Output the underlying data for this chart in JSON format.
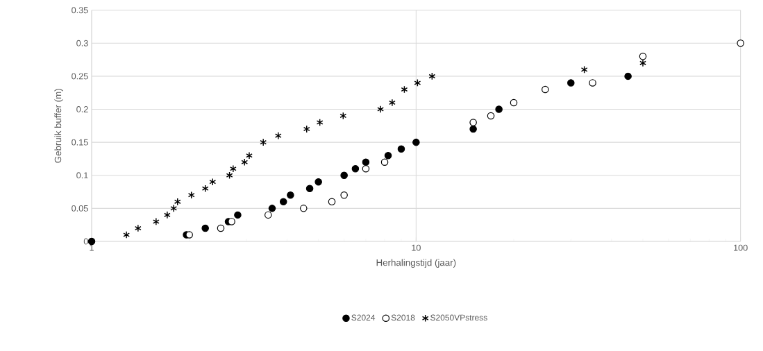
{
  "chart_data": {
    "type": "scatter",
    "xlabel": "Herhalingstijd (jaar)",
    "ylabel": "Gebruik buffer (m)",
    "log": "x",
    "xlim": [
      1,
      100
    ],
    "xticks": [
      1,
      10,
      100
    ],
    "ylim": [
      0,
      0.35
    ],
    "yticks": [
      0,
      0.05,
      0.1,
      0.15,
      0.2,
      0.25,
      0.3,
      0.35
    ],
    "grid": true,
    "legend": "bottom",
    "series": [
      {
        "name": "S2024",
        "color": "#000000",
        "marker": "circle",
        "x": [
          1,
          1.96,
          2.24,
          2.64,
          2.82,
          3.6,
          3.9,
          4.1,
          4.7,
          5,
          6,
          6.5,
          7,
          8.2,
          9,
          10,
          15,
          18,
          30,
          45
        ],
        "values": [
          0,
          0.01,
          0.02,
          0.03,
          0.04,
          0.05,
          0.06,
          0.07,
          0.08,
          0.09,
          0.1,
          0.11,
          0.12,
          0.13,
          0.14,
          0.15,
          0.17,
          0.2,
          0.24,
          0.25
        ]
      },
      {
        "name": "S2018",
        "color": "#ffffff",
        "marker": "circle",
        "x": [
          2,
          2.5,
          2.7,
          3.5,
          4.5,
          5.5,
          6,
          7,
          8,
          15,
          17,
          20,
          25,
          35,
          50,
          100
        ],
        "values": [
          0.01,
          0.02,
          0.03,
          0.04,
          0.05,
          0.06,
          0.07,
          0.11,
          0.12,
          0.18,
          0.19,
          0.21,
          0.23,
          0.24,
          0.28,
          0.3
        ]
      },
      {
        "name": "S2050VPstress",
        "color": "#000000",
        "marker": "cross",
        "x": [
          1.28,
          1.39,
          1.58,
          1.71,
          1.79,
          1.84,
          2.03,
          2.24,
          2.36,
          2.66,
          2.73,
          2.96,
          3.06,
          3.38,
          3.76,
          4.6,
          5.05,
          5.96,
          7.77,
          8.44,
          9.2,
          10.1,
          11.2,
          33,
          50
        ],
        "values": [
          0.01,
          0.02,
          0.03,
          0.04,
          0.05,
          0.06,
          0.07,
          0.08,
          0.09,
          0.1,
          0.11,
          0.12,
          0.13,
          0.15,
          0.16,
          0.17,
          0.18,
          0.19,
          0.2,
          0.21,
          0.23,
          0.24,
          0.25,
          0.26,
          0.27
        ]
      }
    ]
  }
}
